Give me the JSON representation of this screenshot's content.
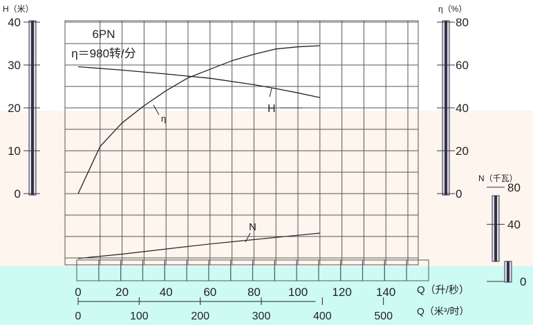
{
  "colors": {
    "band": "#fdf5ee",
    "flow_strip": "#cdfbf3",
    "grid": "#555555",
    "curve": "#222222",
    "bar_dark": "#333344",
    "bar_light": "#ddddea"
  },
  "chart_data": {
    "type": "line",
    "title": "6PN",
    "subtitle": "η＝980转/分",
    "x": {
      "label": "Q（升/秒）",
      "range": [
        0,
        150
      ],
      "ticks": [
        "0",
        "20",
        "40",
        "60",
        "80",
        "100",
        "120",
        "140"
      ],
      "grid": true
    },
    "x2": {
      "label": "Q（米³/时）",
      "range": [
        0,
        540
      ],
      "ticks": [
        "0",
        "100",
        "200",
        "300",
        "400",
        "500"
      ]
    },
    "y_axes": [
      {
        "id": "H",
        "label": "H（米）",
        "range": [
          0,
          40
        ],
        "ticks": [
          "0",
          "10",
          "20",
          "30",
          "40"
        ],
        "position": "left"
      },
      {
        "id": "eta",
        "label": "η（%）",
        "range": [
          0,
          80
        ],
        "ticks": [
          "0",
          "20",
          "40",
          "60",
          "80"
        ],
        "position": "right"
      },
      {
        "id": "N",
        "label": "N（千瓦）",
        "range": [
          0,
          80
        ],
        "ticks": [
          "0",
          "40",
          "80"
        ],
        "position": "right"
      }
    ],
    "series": [
      {
        "name": "H",
        "axis": "H",
        "x": [
          0,
          20,
          40,
          60,
          80,
          90,
          100,
          110
        ],
        "y": [
          29.6,
          28.8,
          27.9,
          26.9,
          25.4,
          24.5,
          23.5,
          22.4
        ]
      },
      {
        "name": "η",
        "axis": "eta",
        "x": [
          0,
          10,
          20,
          30,
          40,
          50,
          60,
          70,
          80,
          90,
          100,
          110
        ],
        "y": [
          0,
          22,
          33,
          41,
          48,
          54,
          58,
          62,
          65,
          67.5,
          68.5,
          69
        ]
      },
      {
        "name": "N",
        "axis": "N",
        "x": [
          0,
          20,
          40,
          60,
          80,
          100,
          110
        ],
        "y": [
          2,
          5,
          8.5,
          12,
          15,
          18,
          19.5
        ]
      }
    ],
    "annotations": [
      "η",
      "H",
      "N"
    ]
  }
}
